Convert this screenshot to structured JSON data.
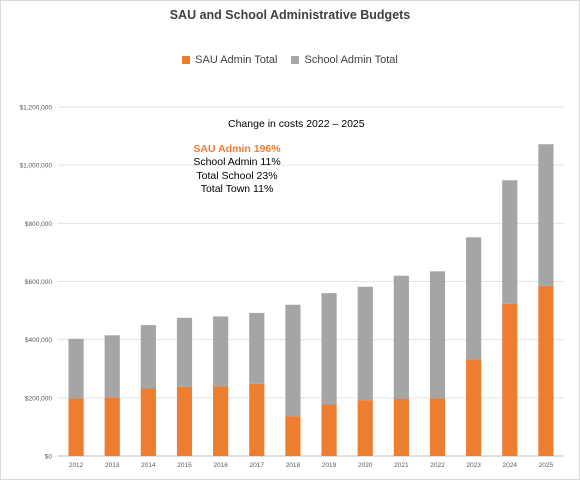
{
  "chart_data": {
    "type": "bar",
    "stacked": true,
    "title": "SAU and School Administrative Budgets",
    "categories": [
      "2012",
      "2013",
      "2014",
      "2015",
      "2016",
      "2017",
      "2018",
      "2019",
      "2020",
      "2021",
      "2022",
      "2023",
      "2024",
      "2025"
    ],
    "series": [
      {
        "name": "SAU Admin Total",
        "color": "#ed7d31",
        "values": [
          198000,
          202000,
          232000,
          238000,
          240000,
          248000,
          137000,
          177000,
          192000,
          196000,
          198000,
          333000,
          523000,
          585000
        ]
      },
      {
        "name": "School Admin Total",
        "color": "#a5a5a5",
        "values": [
          205000,
          213000,
          218000,
          237000,
          240000,
          244000,
          383000,
          383000,
          390000,
          424000,
          437000,
          419000,
          425000,
          487000
        ]
      }
    ],
    "y_ticks": [
      "$0",
      "$200,000",
      "$400,000",
      "$600,000",
      "$800,000",
      "$1,000,000",
      "$1,200,000"
    ],
    "ylim": [
      0,
      1200000
    ],
    "xlabel": "",
    "ylabel": "",
    "grid": true,
    "legend_position": "top-center"
  },
  "annotation": {
    "heading": "Change in costs 2022 – 2025",
    "lines": [
      {
        "text": "SAU Admin 196%",
        "highlight": true
      },
      {
        "text": "School Admin 11%",
        "highlight": false
      },
      {
        "text": "Total School 23%",
        "highlight": false
      },
      {
        "text": "Total Town 11%",
        "highlight": false
      }
    ]
  }
}
